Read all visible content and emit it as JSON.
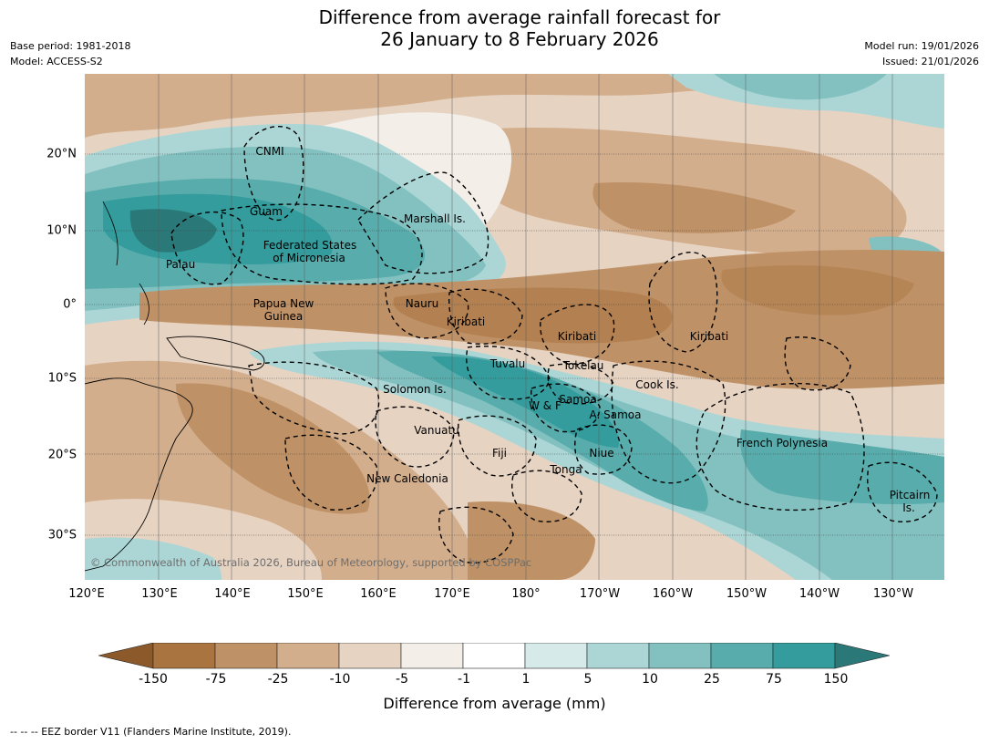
{
  "title": {
    "line1": "Difference from average rainfall forecast for",
    "line2": "26 January to 8 February 2026"
  },
  "meta": {
    "base_period": "Base period: 1981-2018",
    "model": "Model: ACCESS-S2",
    "model_run": "Model run: 19/01/2026",
    "issued": "Issued: 21/01/2026"
  },
  "axes": {
    "lon_labels": [
      "120°E",
      "130°E",
      "140°E",
      "150°E",
      "160°E",
      "170°E",
      "180°",
      "170°W",
      "160°W",
      "150°W",
      "140°W",
      "130°W"
    ],
    "lat_labels": [
      "20°N",
      "10°N",
      "0°",
      "10°S",
      "20°S",
      "30°S"
    ]
  },
  "map_labels": {
    "cnmi": "CNMI",
    "guam": "Guam",
    "marshall": "Marshall Is.",
    "fsm_1": "Federated States",
    "fsm_2": "of Micronesia",
    "palau": "Palau",
    "png_1": "Papua New",
    "png_2": "Guinea",
    "nauru": "Nauru",
    "kiribati_w": "Kiribati",
    "kiribati_c": "Kiribati",
    "kiribati_e": "Kiribati",
    "tuvalu": "Tuvalu",
    "tokelau": "Tokelau",
    "cook": "Cook Is.",
    "solomon": "Solomon Is.",
    "samoa": "Samoa",
    "wf": "W & F",
    "asamoa": "A. Samoa",
    "vanuatu": "Vanuatu",
    "fiji": "Fiji",
    "niue": "Niue",
    "tonga": "Tonga",
    "french_polynesia": "French Polynesia",
    "new_caledonia": "New Caledonia",
    "pitcairn_1": "Pitcairn",
    "pitcairn_2": "Is."
  },
  "copyright": "© Commonwealth of Australia 2026, Bureau of Meteorology, supported by COSPPac",
  "colorbar": {
    "labels": [
      "-150",
      "-75",
      "-25",
      "-10",
      "-5",
      "-1",
      "1",
      "5",
      "10",
      "25",
      "75",
      "150"
    ],
    "colors": [
      "#8c5a2a",
      "#a9743f",
      "#bf9166",
      "#d3ae8c",
      "#e6d3c2",
      "#f3eee8",
      "#ffffff",
      "#d6eae9",
      "#acd6d6",
      "#83c1c1",
      "#58acac",
      "#349c9c",
      "#2a7878"
    ],
    "title": "Difference from average (mm)"
  },
  "footnote": "--  --  -- EEZ border V11 (Flanders Marine Institute, 2019)."
}
